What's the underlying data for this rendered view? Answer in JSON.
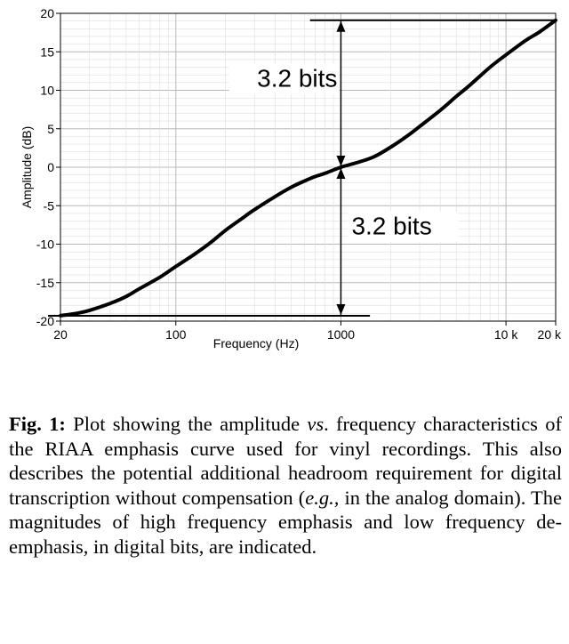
{
  "chart_data": {
    "type": "line",
    "xlabel": "Frequency (Hz)",
    "ylabel": "Amplitude (dB)",
    "xscale": "log",
    "xlim": [
      20,
      20000
    ],
    "ylim": [
      -20,
      20
    ],
    "grid": true,
    "x_ticks": [
      {
        "value": 20,
        "label": "20"
      },
      {
        "value": 100,
        "label": "100"
      },
      {
        "value": 1000,
        "label": "1000"
      },
      {
        "value": 10000,
        "label": "10 k"
      },
      {
        "value": 20000,
        "label": "20 k"
      }
    ],
    "y_ticks": [
      {
        "value": 20,
        "label": "20"
      },
      {
        "value": 15,
        "label": "15"
      },
      {
        "value": 10,
        "label": "10"
      },
      {
        "value": 5,
        "label": "5"
      },
      {
        "value": 0,
        "label": "0"
      },
      {
        "value": -5,
        "label": "-5"
      },
      {
        "value": -10,
        "label": "-10"
      },
      {
        "value": -15,
        "label": "-15"
      },
      {
        "value": -20,
        "label": "-20"
      }
    ],
    "series": [
      {
        "x": [
          20,
          25,
          30,
          40,
          50,
          60,
          80,
          100,
          130,
          160,
          200,
          250,
          300,
          400,
          500,
          600,
          700,
          800,
          1000,
          1300,
          1600,
          2000,
          2500,
          3000,
          4000,
          5000,
          6000,
          8000,
          10000,
          13000,
          16000,
          20000
        ],
        "y": [
          -19.3,
          -19.0,
          -18.6,
          -17.7,
          -16.8,
          -15.8,
          -14.3,
          -12.9,
          -11.3,
          -9.9,
          -8.2,
          -6.7,
          -5.5,
          -3.8,
          -2.6,
          -1.8,
          -1.2,
          -0.8,
          0.0,
          0.7,
          1.4,
          2.6,
          4.0,
          5.3,
          7.4,
          9.2,
          10.6,
          13.0,
          14.6,
          16.4,
          17.6,
          19.1
        ]
      }
    ],
    "reference_lines": [
      {
        "y": 19.1,
        "x_from": 650,
        "x_to": 20000
      },
      {
        "y": -19.3,
        "x_from": 20,
        "x_to": 1500
      }
    ],
    "annotations": [
      {
        "text": "3.2 bits",
        "x": 1000,
        "y_from": 0,
        "y_to": 19.1
      },
      {
        "text": "3.2 bits",
        "x": 1000,
        "y_from": 0,
        "y_to": -19.3
      }
    ]
  },
  "caption": {
    "label": "Fig. 1:",
    "part1": " Plot showing the amplitude ",
    "vs": "vs",
    "part2": ". frequency characteristics of the RIAA emphasis curve used for vinyl recordings. This also describes the potential additional headroom requirement for digital transcription without compensation (",
    "eg": "e.g.,",
    "part3": " in the analog domain). The magnitudes of high frequency emphasis and low frequency de-emphasis, in digital bits, are indicated."
  }
}
